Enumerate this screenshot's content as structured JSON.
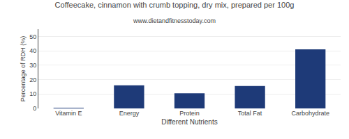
{
  "chart_data": {
    "type": "bar",
    "title": "Coffeecake, cinnamon with crumb topping, dry mix, prepared per 100g",
    "subtitle": "www.dietandfitnesstoday.com",
    "xlabel": "Different Nutrients",
    "ylabel": "Percentage of RDH (%)",
    "categories": [
      "Vitamin E",
      "Energy",
      "Protein",
      "Total Fat",
      "Carbohydrate"
    ],
    "values": [
      0.4,
      16,
      10.5,
      15.5,
      41
    ],
    "color": "#1e3a78",
    "ylim": [
      0,
      55
    ],
    "yticks": [
      0,
      10,
      20,
      30,
      40,
      50
    ],
    "grid": true
  }
}
